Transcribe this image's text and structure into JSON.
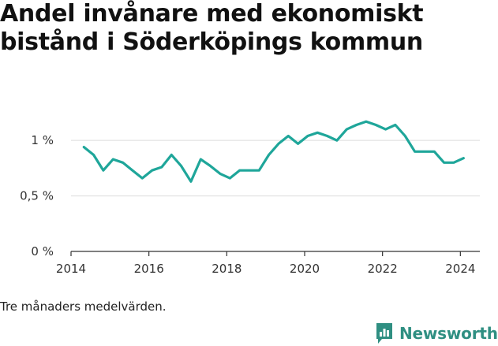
{
  "chart_data": {
    "type": "line",
    "title": "Andel invånare med ekonomiskt bistånd i Söderköpings kommun",
    "note": "Tre månaders medelvärden.",
    "xlabel": "",
    "ylabel": "",
    "y_unit": "%",
    "ylim": [
      0,
      1.2
    ],
    "yticks": [
      {
        "value": 0,
        "label": "0 %"
      },
      {
        "value": 0.5,
        "label": "0,5 %"
      },
      {
        "value": 1,
        "label": "1 %"
      }
    ],
    "xlim": [
      2014.0,
      2024.5
    ],
    "xticks": [
      {
        "value": 2014,
        "label": "2014"
      },
      {
        "value": 2016,
        "label": "2016"
      },
      {
        "value": 2018,
        "label": "2018"
      },
      {
        "value": 2020,
        "label": "2020"
      },
      {
        "value": 2022,
        "label": "2022"
      },
      {
        "value": 2024,
        "label": "2024"
      }
    ],
    "grid": true,
    "series": [
      {
        "color": "#1fa69a",
        "points": [
          {
            "x": 2014.33,
            "y": 0.94
          },
          {
            "x": 2014.58,
            "y": 0.87
          },
          {
            "x": 2014.83,
            "y": 0.73
          },
          {
            "x": 2015.08,
            "y": 0.83
          },
          {
            "x": 2015.33,
            "y": 0.8
          },
          {
            "x": 2015.58,
            "y": 0.73
          },
          {
            "x": 2015.83,
            "y": 0.66
          },
          {
            "x": 2016.08,
            "y": 0.73
          },
          {
            "x": 2016.33,
            "y": 0.76
          },
          {
            "x": 2016.58,
            "y": 0.87
          },
          {
            "x": 2016.83,
            "y": 0.77
          },
          {
            "x": 2017.08,
            "y": 0.63
          },
          {
            "x": 2017.33,
            "y": 0.83
          },
          {
            "x": 2017.58,
            "y": 0.77
          },
          {
            "x": 2017.83,
            "y": 0.7
          },
          {
            "x": 2018.08,
            "y": 0.66
          },
          {
            "x": 2018.33,
            "y": 0.73
          },
          {
            "x": 2018.58,
            "y": 0.73
          },
          {
            "x": 2018.83,
            "y": 0.73
          },
          {
            "x": 2019.08,
            "y": 0.87
          },
          {
            "x": 2019.33,
            "y": 0.97
          },
          {
            "x": 2019.58,
            "y": 1.04
          },
          {
            "x": 2019.83,
            "y": 0.97
          },
          {
            "x": 2020.08,
            "y": 1.04
          },
          {
            "x": 2020.33,
            "y": 1.07
          },
          {
            "x": 2020.58,
            "y": 1.04
          },
          {
            "x": 2020.83,
            "y": 1.0
          },
          {
            "x": 2021.08,
            "y": 1.1
          },
          {
            "x": 2021.33,
            "y": 1.14
          },
          {
            "x": 2021.58,
            "y": 1.17
          },
          {
            "x": 2021.83,
            "y": 1.14
          },
          {
            "x": 2022.08,
            "y": 1.1
          },
          {
            "x": 2022.33,
            "y": 1.14
          },
          {
            "x": 2022.58,
            "y": 1.04
          },
          {
            "x": 2022.83,
            "y": 0.9
          },
          {
            "x": 2023.08,
            "y": 0.9
          },
          {
            "x": 2023.33,
            "y": 0.9
          },
          {
            "x": 2023.58,
            "y": 0.8
          },
          {
            "x": 2023.83,
            "y": 0.8
          },
          {
            "x": 2024.08,
            "y": 0.84
          }
        ]
      }
    ]
  },
  "brand": {
    "name": "Newsworthy",
    "logo_icon": "bar-chart-speech-bubble-icon",
    "color": "#2f8f82"
  }
}
